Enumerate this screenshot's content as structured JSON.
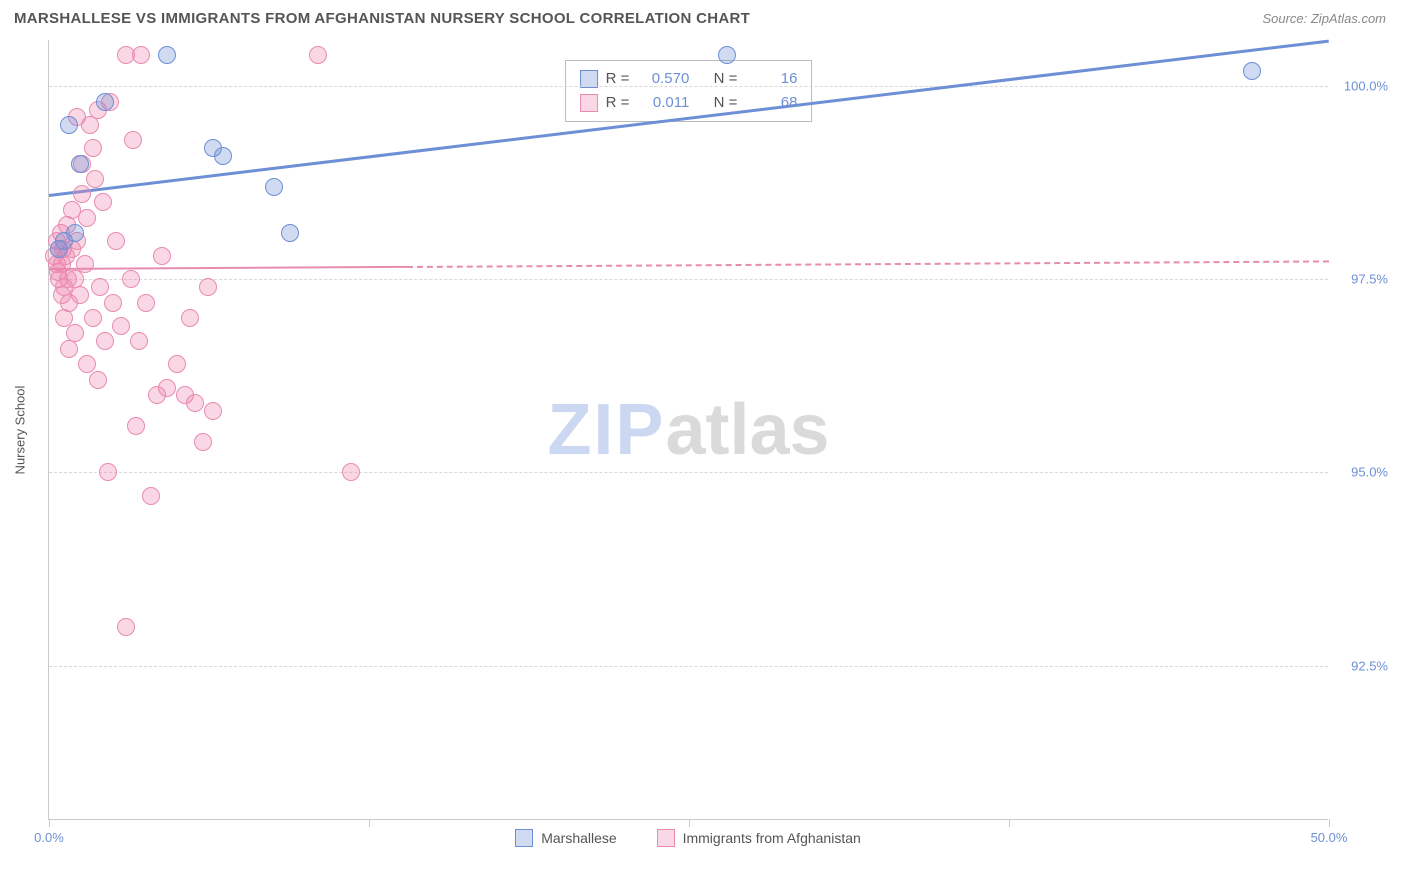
{
  "header": {
    "title": "MARSHALLESE VS IMMIGRANTS FROM AFGHANISTAN NURSERY SCHOOL CORRELATION CHART",
    "source": "Source: ZipAtlas.com"
  },
  "watermark": {
    "zip": "ZIP",
    "atlas": "atlas"
  },
  "chart": {
    "type": "scatter",
    "x_min": 0.0,
    "x_max": 50.0,
    "y_min": 90.5,
    "y_max": 100.6,
    "y_axis_title": "Nursery School",
    "y_ticks": [
      {
        "value": 100.0,
        "label": "100.0%"
      },
      {
        "value": 97.5,
        "label": "97.5%"
      },
      {
        "value": 95.0,
        "label": "95.0%"
      },
      {
        "value": 92.5,
        "label": "92.5%"
      }
    ],
    "x_ticks_minor": [
      0,
      12.5,
      25,
      37.5,
      50
    ],
    "x_ticks_labeled": [
      {
        "value": 0.0,
        "label": "0.0%"
      },
      {
        "value": 50.0,
        "label": "50.0%"
      }
    ],
    "grid_color": "#d8d8d8",
    "axis_color": "#c9c9c9",
    "marker_radius": 9,
    "marker_border_width": 1.2
  },
  "series": {
    "a": {
      "name": "Marshallese",
      "fill": "rgba(109,143,214,0.32)",
      "stroke": "#6d8fd6",
      "R": "0.570",
      "N": "16",
      "trend": {
        "x1": 0,
        "y1": 98.6,
        "x2": 50,
        "y2": 100.6,
        "width": 3,
        "dashed": false
      },
      "points": [
        [
          0.4,
          97.9
        ],
        [
          0.6,
          98.0
        ],
        [
          0.8,
          99.5
        ],
        [
          1.0,
          98.1
        ],
        [
          1.2,
          99.0
        ],
        [
          2.2,
          99.8
        ],
        [
          4.6,
          100.4
        ],
        [
          6.4,
          99.2
        ],
        [
          6.8,
          99.1
        ],
        [
          8.8,
          98.7
        ],
        [
          9.4,
          98.1
        ],
        [
          26.5,
          100.4
        ],
        [
          47.0,
          100.2
        ]
      ]
    },
    "b": {
      "name": "Immigrants from Afghanistan",
      "fill": "rgba(240,130,170,0.32)",
      "stroke": "#e88bb0",
      "R": "0.011",
      "N": "68",
      "trend": {
        "x1": 0,
        "y1": 97.65,
        "x2": 50,
        "y2": 97.75,
        "width": 2,
        "dashed": true,
        "solid_until_x": 14
      },
      "points": [
        [
          0.2,
          97.8
        ],
        [
          0.3,
          97.7
        ],
        [
          0.3,
          98.0
        ],
        [
          0.35,
          97.6
        ],
        [
          0.4,
          97.5
        ],
        [
          0.4,
          97.9
        ],
        [
          0.45,
          98.1
        ],
        [
          0.5,
          97.3
        ],
        [
          0.5,
          97.7
        ],
        [
          0.55,
          97.9
        ],
        [
          0.6,
          97.0
        ],
        [
          0.6,
          97.4
        ],
        [
          0.65,
          97.8
        ],
        [
          0.7,
          98.2
        ],
        [
          0.75,
          97.5
        ],
        [
          0.8,
          96.6
        ],
        [
          0.8,
          97.2
        ],
        [
          0.9,
          97.9
        ],
        [
          0.9,
          98.4
        ],
        [
          1.0,
          96.8
        ],
        [
          1.0,
          97.5
        ],
        [
          1.1,
          99.6
        ],
        [
          1.1,
          98.0
        ],
        [
          1.2,
          97.3
        ],
        [
          1.3,
          98.6
        ],
        [
          1.3,
          99.0
        ],
        [
          1.4,
          97.7
        ],
        [
          1.5,
          96.4
        ],
        [
          1.5,
          98.3
        ],
        [
          1.6,
          99.5
        ],
        [
          1.7,
          97.0
        ],
        [
          1.7,
          99.2
        ],
        [
          1.8,
          98.8
        ],
        [
          1.9,
          96.2
        ],
        [
          1.9,
          99.7
        ],
        [
          2.0,
          97.4
        ],
        [
          2.1,
          98.5
        ],
        [
          2.2,
          96.7
        ],
        [
          2.3,
          95.0
        ],
        [
          2.4,
          99.8
        ],
        [
          2.5,
          97.2
        ],
        [
          2.6,
          98.0
        ],
        [
          2.8,
          96.9
        ],
        [
          3.0,
          100.4
        ],
        [
          3.2,
          97.5
        ],
        [
          3.3,
          99.3
        ],
        [
          3.4,
          95.6
        ],
        [
          3.5,
          96.7
        ],
        [
          3.6,
          100.4
        ],
        [
          3.8,
          97.2
        ],
        [
          4.0,
          94.7
        ],
        [
          4.2,
          96.0
        ],
        [
          4.4,
          97.8
        ],
        [
          4.6,
          96.1
        ],
        [
          5.0,
          96.4
        ],
        [
          5.3,
          96.0
        ],
        [
          5.5,
          97.0
        ],
        [
          5.7,
          95.9
        ],
        [
          6.0,
          95.4
        ],
        [
          6.2,
          97.4
        ],
        [
          6.4,
          95.8
        ],
        [
          10.5,
          100.4
        ],
        [
          11.8,
          95.0
        ],
        [
          3.0,
          93.0
        ]
      ]
    }
  },
  "stat_box": {
    "rows": [
      {
        "swatch": "a",
        "R_label": "R =",
        "N_label": "N ="
      },
      {
        "swatch": "b",
        "R_label": "R =",
        "N_label": "N ="
      }
    ]
  },
  "legend_bottom": {
    "items": [
      {
        "series": "a"
      },
      {
        "series": "b"
      }
    ]
  }
}
